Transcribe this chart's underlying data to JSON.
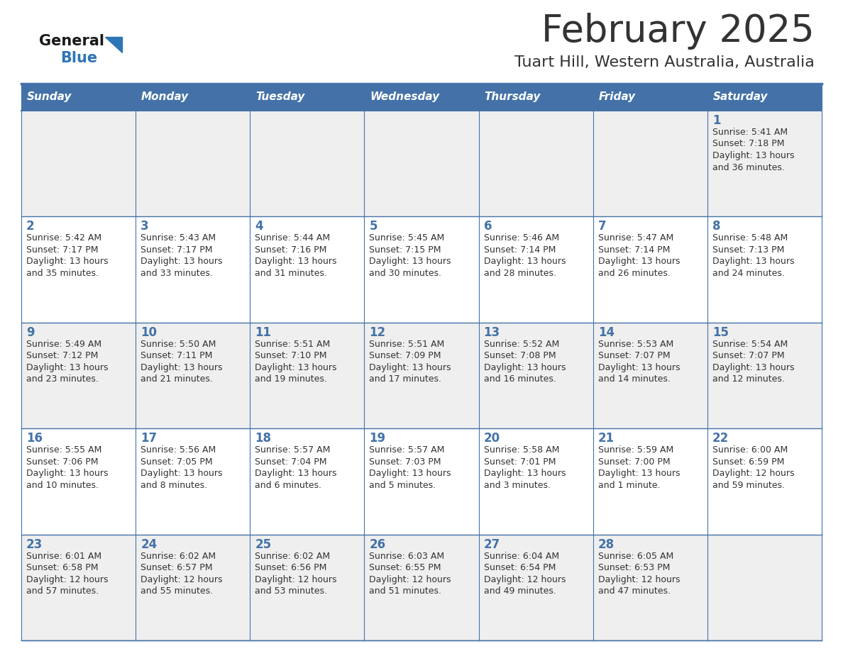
{
  "title": "February 2025",
  "subtitle": "Tuart Hill, Western Australia, Australia",
  "days_of_week": [
    "Sunday",
    "Monday",
    "Tuesday",
    "Wednesday",
    "Thursday",
    "Friday",
    "Saturday"
  ],
  "header_bg_color": "#4472A8",
  "header_text_color": "#FFFFFF",
  "cell_bg_color_odd": "#EFEFEF",
  "cell_bg_color_even": "#FFFFFF",
  "day_number_color": "#4472A8",
  "text_color": "#333333",
  "border_color": "#4472A8",
  "background_color": "#FFFFFF",
  "logo_general_color": "#1a1a1a",
  "logo_blue_color": "#2E75B6",
  "weeks": [
    [
      {
        "day": null,
        "sunrise": null,
        "sunset": null,
        "daylight": null
      },
      {
        "day": null,
        "sunrise": null,
        "sunset": null,
        "daylight": null
      },
      {
        "day": null,
        "sunrise": null,
        "sunset": null,
        "daylight": null
      },
      {
        "day": null,
        "sunrise": null,
        "sunset": null,
        "daylight": null
      },
      {
        "day": null,
        "sunrise": null,
        "sunset": null,
        "daylight": null
      },
      {
        "day": null,
        "sunrise": null,
        "sunset": null,
        "daylight": null
      },
      {
        "day": 1,
        "sunrise": "5:41 AM",
        "sunset": "7:18 PM",
        "daylight": "13 hours and 36 minutes."
      }
    ],
    [
      {
        "day": 2,
        "sunrise": "5:42 AM",
        "sunset": "7:17 PM",
        "daylight": "13 hours and 35 minutes."
      },
      {
        "day": 3,
        "sunrise": "5:43 AM",
        "sunset": "7:17 PM",
        "daylight": "13 hours and 33 minutes."
      },
      {
        "day": 4,
        "sunrise": "5:44 AM",
        "sunset": "7:16 PM",
        "daylight": "13 hours and 31 minutes."
      },
      {
        "day": 5,
        "sunrise": "5:45 AM",
        "sunset": "7:15 PM",
        "daylight": "13 hours and 30 minutes."
      },
      {
        "day": 6,
        "sunrise": "5:46 AM",
        "sunset": "7:14 PM",
        "daylight": "13 hours and 28 minutes."
      },
      {
        "day": 7,
        "sunrise": "5:47 AM",
        "sunset": "7:14 PM",
        "daylight": "13 hours and 26 minutes."
      },
      {
        "day": 8,
        "sunrise": "5:48 AM",
        "sunset": "7:13 PM",
        "daylight": "13 hours and 24 minutes."
      }
    ],
    [
      {
        "day": 9,
        "sunrise": "5:49 AM",
        "sunset": "7:12 PM",
        "daylight": "13 hours and 23 minutes."
      },
      {
        "day": 10,
        "sunrise": "5:50 AM",
        "sunset": "7:11 PM",
        "daylight": "13 hours and 21 minutes."
      },
      {
        "day": 11,
        "sunrise": "5:51 AM",
        "sunset": "7:10 PM",
        "daylight": "13 hours and 19 minutes."
      },
      {
        "day": 12,
        "sunrise": "5:51 AM",
        "sunset": "7:09 PM",
        "daylight": "13 hours and 17 minutes."
      },
      {
        "day": 13,
        "sunrise": "5:52 AM",
        "sunset": "7:08 PM",
        "daylight": "13 hours and 16 minutes."
      },
      {
        "day": 14,
        "sunrise": "5:53 AM",
        "sunset": "7:07 PM",
        "daylight": "13 hours and 14 minutes."
      },
      {
        "day": 15,
        "sunrise": "5:54 AM",
        "sunset": "7:07 PM",
        "daylight": "13 hours and 12 minutes."
      }
    ],
    [
      {
        "day": 16,
        "sunrise": "5:55 AM",
        "sunset": "7:06 PM",
        "daylight": "13 hours and 10 minutes."
      },
      {
        "day": 17,
        "sunrise": "5:56 AM",
        "sunset": "7:05 PM",
        "daylight": "13 hours and 8 minutes."
      },
      {
        "day": 18,
        "sunrise": "5:57 AM",
        "sunset": "7:04 PM",
        "daylight": "13 hours and 6 minutes."
      },
      {
        "day": 19,
        "sunrise": "5:57 AM",
        "sunset": "7:03 PM",
        "daylight": "13 hours and 5 minutes."
      },
      {
        "day": 20,
        "sunrise": "5:58 AM",
        "sunset": "7:01 PM",
        "daylight": "13 hours and 3 minutes."
      },
      {
        "day": 21,
        "sunrise": "5:59 AM",
        "sunset": "7:00 PM",
        "daylight": "13 hours and 1 minute."
      },
      {
        "day": 22,
        "sunrise": "6:00 AM",
        "sunset": "6:59 PM",
        "daylight": "12 hours and 59 minutes."
      }
    ],
    [
      {
        "day": 23,
        "sunrise": "6:01 AM",
        "sunset": "6:58 PM",
        "daylight": "12 hours and 57 minutes."
      },
      {
        "day": 24,
        "sunrise": "6:02 AM",
        "sunset": "6:57 PM",
        "daylight": "12 hours and 55 minutes."
      },
      {
        "day": 25,
        "sunrise": "6:02 AM",
        "sunset": "6:56 PM",
        "daylight": "12 hours and 53 minutes."
      },
      {
        "day": 26,
        "sunrise": "6:03 AM",
        "sunset": "6:55 PM",
        "daylight": "12 hours and 51 minutes."
      },
      {
        "day": 27,
        "sunrise": "6:04 AM",
        "sunset": "6:54 PM",
        "daylight": "12 hours and 49 minutes."
      },
      {
        "day": 28,
        "sunrise": "6:05 AM",
        "sunset": "6:53 PM",
        "daylight": "12 hours and 47 minutes."
      },
      {
        "day": null,
        "sunrise": null,
        "sunset": null,
        "daylight": null
      }
    ]
  ]
}
